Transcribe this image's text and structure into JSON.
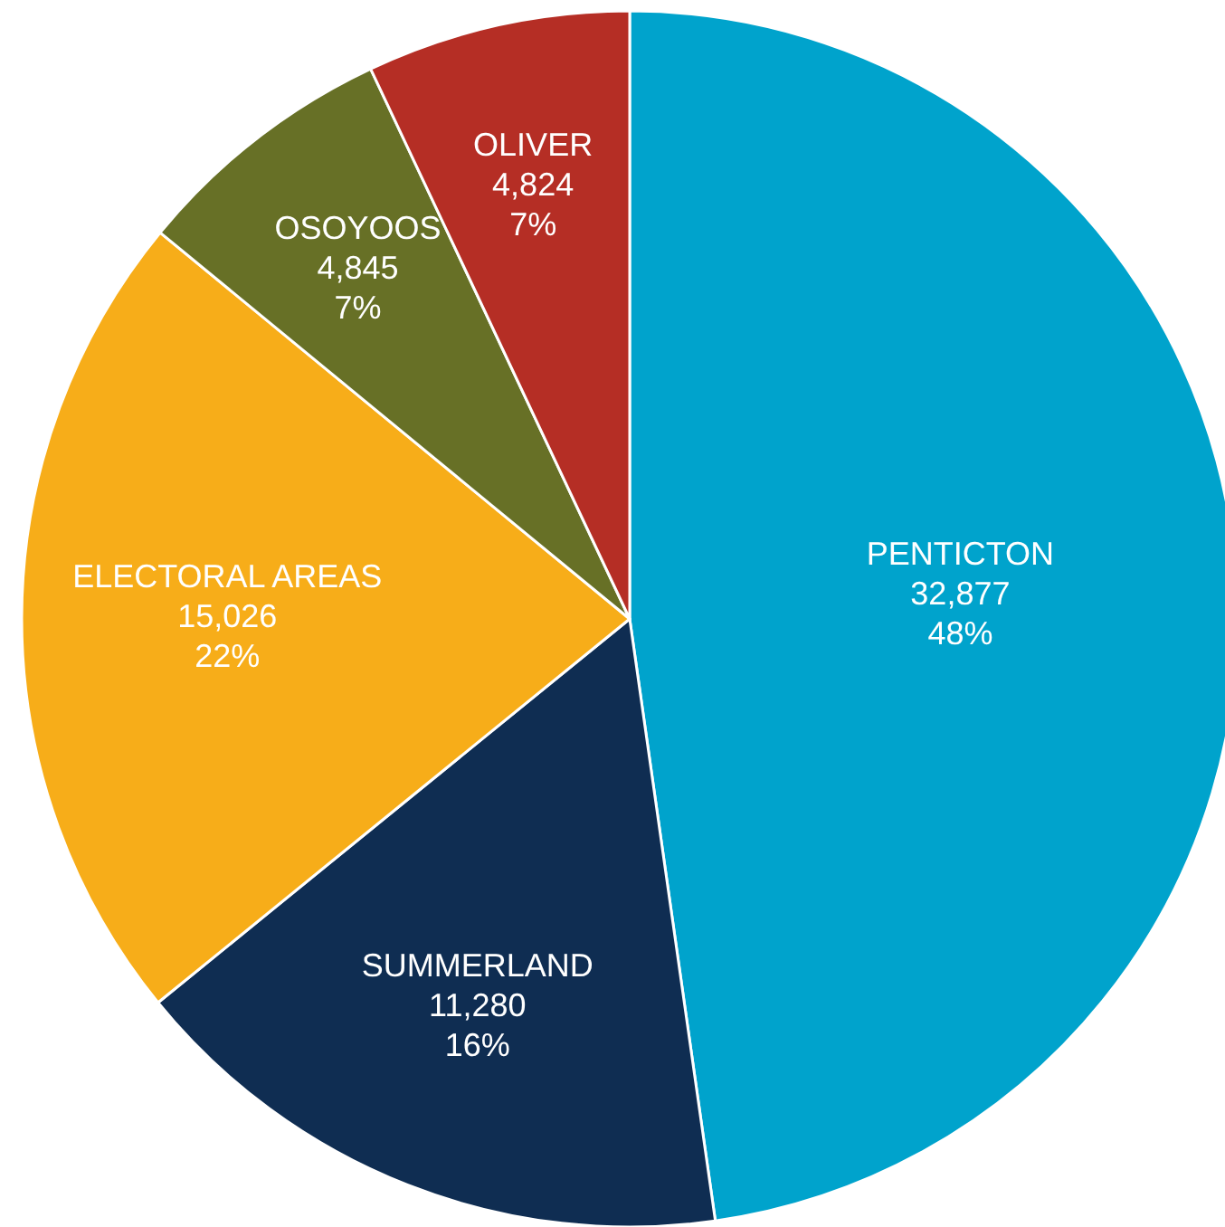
{
  "chart_data": {
    "type": "pie",
    "categories": [
      "PENTICTON",
      "SUMMERLAND",
      "ELECTORAL AREAS",
      "OSOYOOS",
      "OLIVER"
    ],
    "values": [
      32877,
      11280,
      15026,
      4845,
      4824
    ],
    "value_labels": [
      "32,877",
      "11,280",
      "15,026",
      "4,845",
      "4,824"
    ],
    "annotations": [
      "48%",
      "16%",
      "22%",
      "7%",
      "7%"
    ],
    "colors": [
      "#00a3cc",
      "#0f2d52",
      "#f7ad19",
      "#677026",
      "#b52e25"
    ]
  }
}
